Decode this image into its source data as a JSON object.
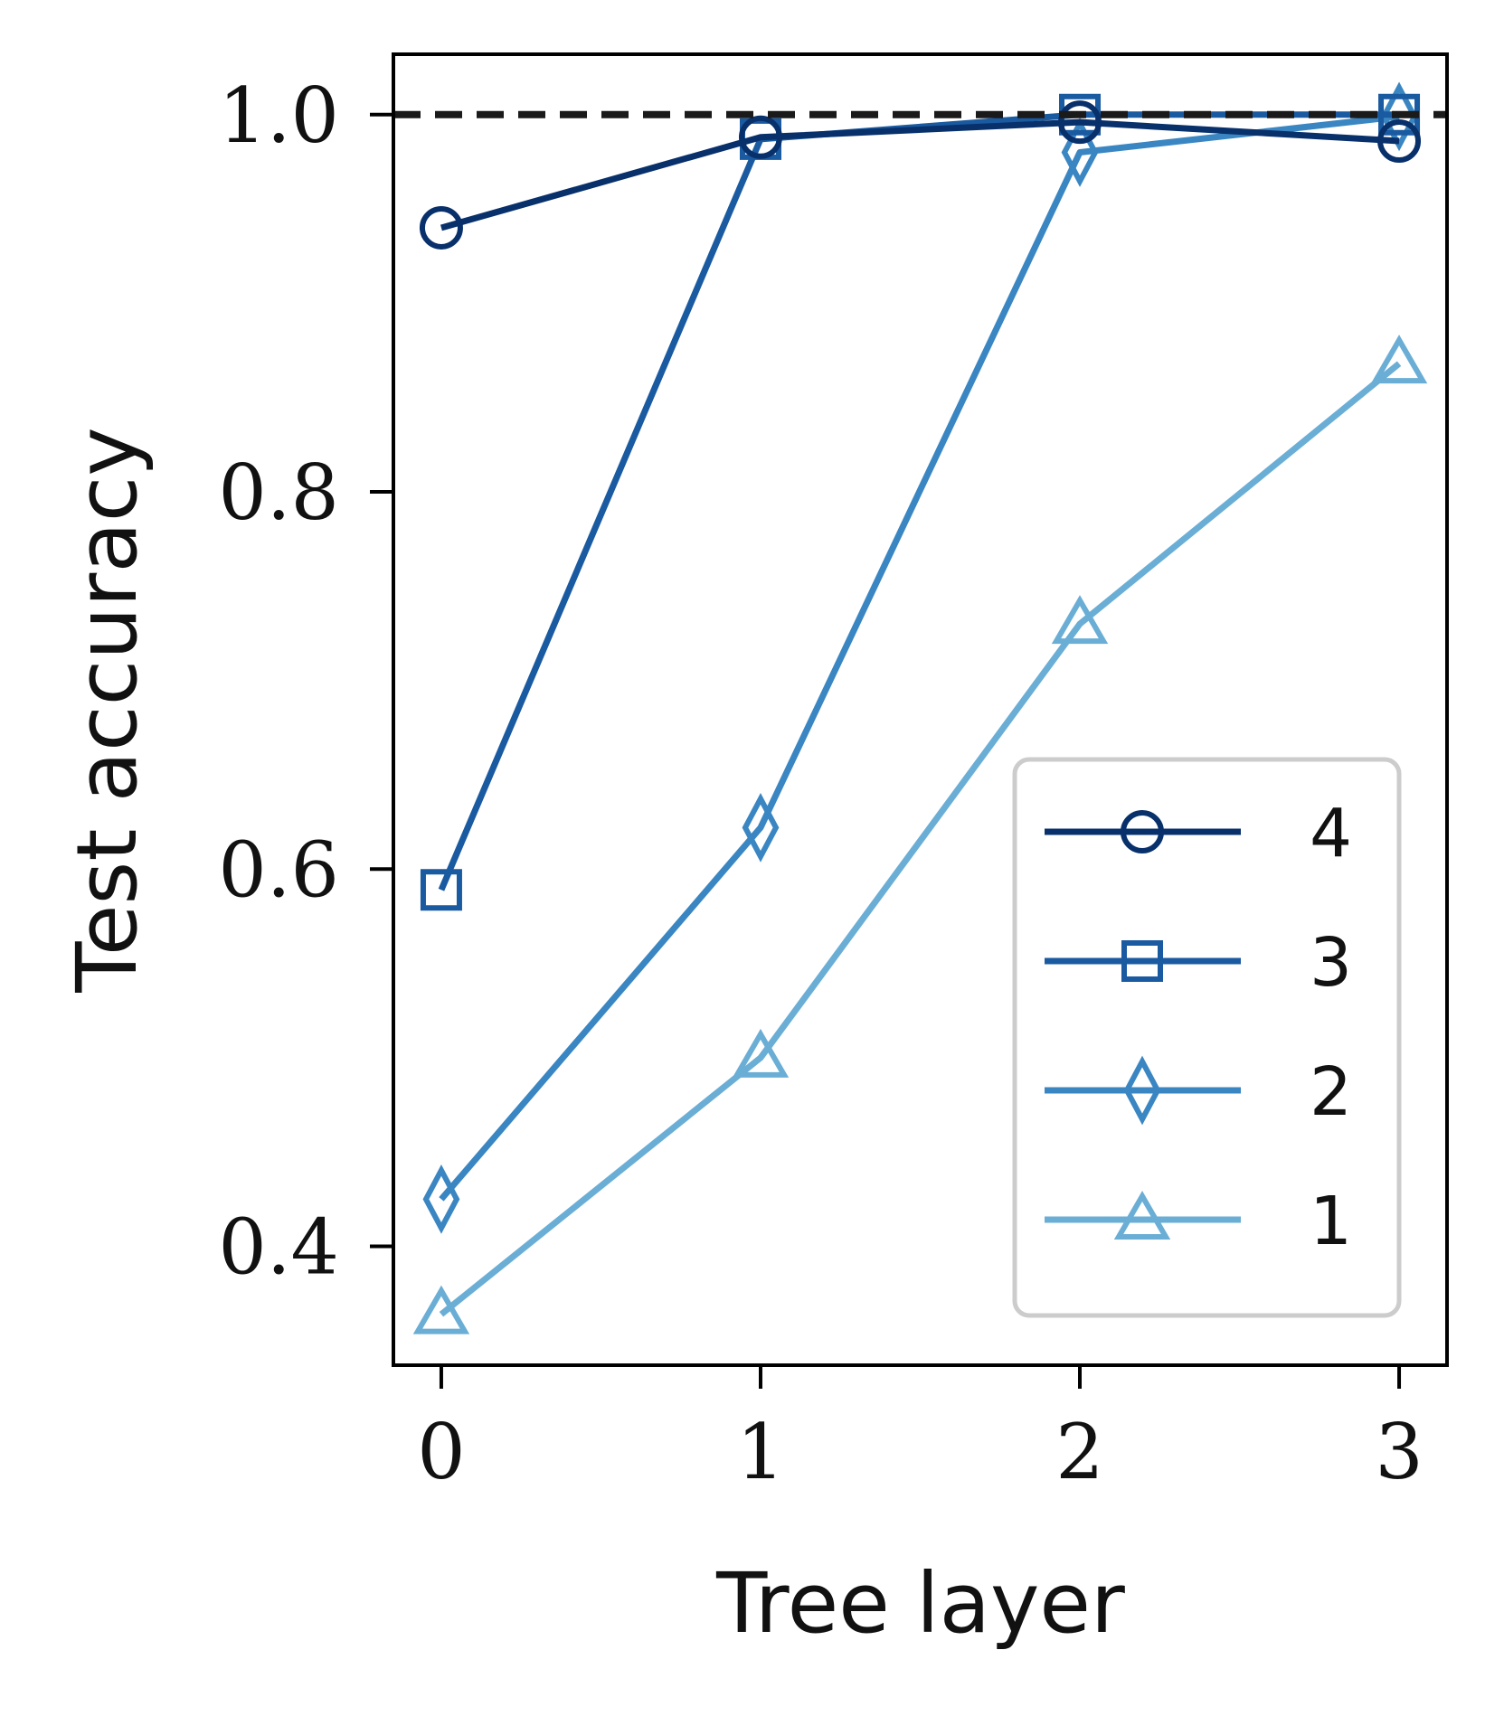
{
  "chart_data": {
    "type": "line",
    "title": "",
    "xlabel": "Tree layer",
    "ylabel": "Test accuracy",
    "x": [
      0,
      1,
      2,
      3
    ],
    "xticks": [
      "0",
      "1",
      "2",
      "3"
    ],
    "yticks": [
      "0.4",
      "0.6",
      "0.8",
      "1.0"
    ],
    "ytick_values": [
      0.4,
      0.6,
      0.8,
      1.0
    ],
    "xlim": [
      -0.15,
      3.15
    ],
    "ylim": [
      0.337,
      1.032
    ],
    "reference_line": {
      "y": 1.0,
      "style": "dashed",
      "color": "#1a1a1a"
    },
    "legend_position": "lower-right",
    "series": [
      {
        "name": "4",
        "marker": "circle",
        "color": "#08306b",
        "values": [
          0.94,
          0.988,
          0.996,
          0.986
        ]
      },
      {
        "name": "3",
        "marker": "square",
        "color": "#1a5aa0",
        "values": [
          0.589,
          0.987,
          1.0,
          1.0
        ]
      },
      {
        "name": "2",
        "marker": "diamond",
        "color": "#3a86c2",
        "values": [
          0.425,
          0.622,
          0.98,
          0.999
        ]
      },
      {
        "name": "1",
        "marker": "triangle",
        "color": "#6aaed6",
        "values": [
          0.364,
          0.5,
          0.73,
          0.868
        ]
      }
    ]
  }
}
